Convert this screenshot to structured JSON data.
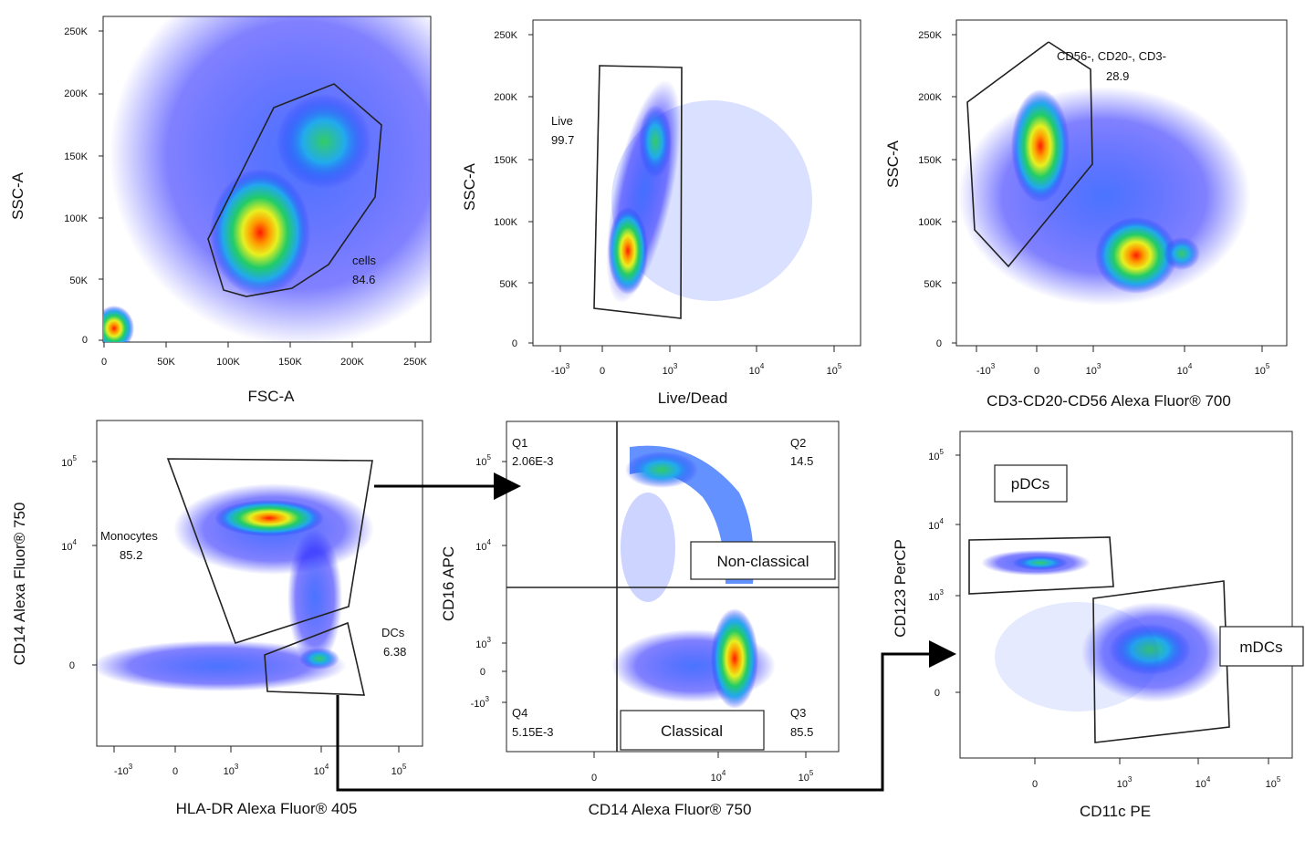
{
  "chart_data": [
    {
      "type": "scatter",
      "name": "fsc-ssc",
      "xlabel": "FSC-A",
      "ylabel": "SSC-A",
      "x_ticks": [
        "0",
        "50K",
        "100K",
        "150K",
        "200K",
        "250K"
      ],
      "y_ticks": [
        "0",
        "50K",
        "100K",
        "150K",
        "200K",
        "250K"
      ],
      "xlim": [
        0,
        262144
      ],
      "ylim": [
        0,
        262144
      ],
      "gates": [
        {
          "label": "cells",
          "value": "84.6"
        }
      ],
      "populations": [
        {
          "x": 130000,
          "y": 75000
        },
        {
          "x": 180000,
          "y": 155000
        }
      ]
    },
    {
      "type": "scatter",
      "name": "live-dead",
      "xlabel": "Live/Dead",
      "ylabel": "SSC-A",
      "x_ticks": [
        "-10",
        "0",
        "10",
        "10",
        "10"
      ],
      "x_tick_exponents": [
        "3",
        "",
        "3",
        "4",
        "5"
      ],
      "y_ticks": [
        "0",
        "50K",
        "100K",
        "150K",
        "200K",
        "250K"
      ],
      "gates": [
        {
          "label": "Live",
          "value": "99.7"
        }
      ]
    },
    {
      "type": "scatter",
      "name": "lineage",
      "xlabel": "CD3-CD20-CD56 Alexa Fluor® 700",
      "ylabel": "SSC-A",
      "x_ticks": [
        "-10",
        "0",
        "10",
        "10",
        "10"
      ],
      "x_tick_exponents": [
        "3",
        "",
        "3",
        "4",
        "5"
      ],
      "y_ticks": [
        "0",
        "50K",
        "100K",
        "150K",
        "200K",
        "250K"
      ],
      "gates": [
        {
          "label": "CD56-, CD20-, CD3-",
          "value": "28.9"
        }
      ]
    },
    {
      "type": "scatter",
      "name": "hla-dr-cd14",
      "xlabel": "HLA-DR Alexa Fluor® 405",
      "ylabel": "CD14 Alexa Fluor® 750",
      "x_ticks": [
        "-10",
        "0",
        "10",
        "10",
        "10"
      ],
      "x_tick_exponents": [
        "3",
        "",
        "3",
        "4",
        "5"
      ],
      "y_ticks": [
        "0",
        "10",
        "10"
      ],
      "y_tick_exponents": [
        "",
        "4",
        "5"
      ],
      "gates": [
        {
          "label": "Monocytes",
          "value": "85.2"
        },
        {
          "label": "DCs",
          "value": "6.38"
        }
      ]
    },
    {
      "type": "scatter",
      "name": "cd14-cd16",
      "xlabel": "CD14 Alexa Fluor® 750",
      "ylabel": "CD16 APC",
      "x_ticks": [
        "0",
        "10",
        "10"
      ],
      "x_tick_exponents": [
        "",
        "4",
        "5"
      ],
      "y_ticks": [
        "-10",
        "0",
        "10",
        "10",
        "10"
      ],
      "y_tick_exponents": [
        "3",
        "",
        "3",
        "4",
        "5"
      ],
      "quadrants": [
        {
          "label": "Q1",
          "value": "2.06E-3"
        },
        {
          "label": "Q2",
          "value": "14.5"
        },
        {
          "label": "Q3",
          "value": "85.5"
        },
        {
          "label": "Q4",
          "value": "5.15E-3"
        }
      ],
      "boxes": [
        "Non-classical",
        "Classical"
      ]
    },
    {
      "type": "scatter",
      "name": "cd11c-cd123",
      "xlabel": "CD11c PE",
      "ylabel": "CD123 PerCP",
      "x_ticks": [
        "0",
        "10",
        "10",
        "10"
      ],
      "x_tick_exponents": [
        "",
        "3",
        "4",
        "5"
      ],
      "y_ticks": [
        "0",
        "10",
        "10",
        "10"
      ],
      "y_tick_exponents": [
        "",
        "3",
        "4",
        "5"
      ],
      "boxes": [
        "pDCs",
        "mDCs"
      ]
    }
  ],
  "colors": {
    "density_low": "#1a1aff",
    "density_mid": "#22cc66",
    "density_high": "#ffee22",
    "density_peak": "#ff2200",
    "gate_stroke": "#222222",
    "arrow": "#000000"
  }
}
